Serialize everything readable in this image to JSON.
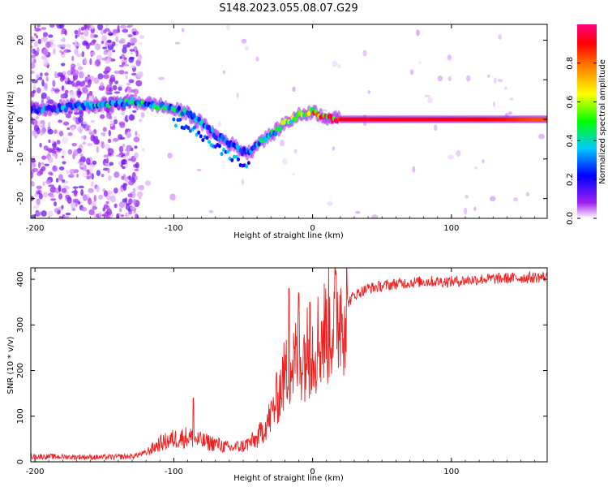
{
  "title": "S148.2023.055.08.07.G29",
  "chart_data": [
    {
      "type": "heatmap",
      "xlabel": "Height of straight line (km)",
      "ylabel": "Frequency (Hz)",
      "xlim": [
        -203,
        169
      ],
      "ylim": [
        -25,
        24
      ],
      "xticks": [
        -200,
        -100,
        0,
        100
      ],
      "yticks": [
        -20,
        -10,
        0,
        10,
        20
      ],
      "colorbar": {
        "label": "Normalized spectral amplitude",
        "range": [
          0,
          1
        ],
        "ticks": [
          0.0,
          0.2,
          0.4,
          0.6,
          0.8
        ],
        "stops": [
          "#ffffff",
          "#a020f0",
          "#0000ff",
          "#00c8ff",
          "#00ff00",
          "#ffff00",
          "#ff8000",
          "#ff0000",
          "#ff0080"
        ]
      },
      "ridge": {
        "height_km": [
          -200,
          -180,
          -160,
          -140,
          -130,
          -120,
          -110,
          -100,
          -90,
          -80,
          -70,
          -60,
          -50,
          -45,
          -40,
          -30,
          -20,
          -10,
          0,
          10,
          20,
          40,
          60,
          80,
          100,
          120,
          140,
          160,
          169
        ],
        "frequency_hz": [
          2.5,
          3,
          3.5,
          4,
          4.5,
          4,
          3.5,
          2.5,
          1.5,
          -1,
          -4,
          -6,
          -8,
          -8.5,
          -6,
          -4,
          -1,
          1,
          2,
          0.5,
          0,
          0,
          0,
          0,
          0,
          0,
          0,
          0,
          0
        ],
        "amplitude": [
          0.3,
          0.35,
          0.35,
          0.4,
          0.4,
          0.45,
          0.45,
          0.4,
          0.35,
          0.35,
          0.3,
          0.3,
          0.3,
          0.3,
          0.35,
          0.4,
          0.5,
          0.6,
          0.7,
          0.85,
          0.9,
          0.9,
          0.9,
          0.9,
          0.9,
          0.88,
          0.85,
          0.8,
          0.8
        ]
      }
    },
    {
      "type": "line",
      "xlabel": "Height of straight line (km)",
      "ylabel": "SNR (10 * v/v)",
      "xlim": [
        -203,
        169
      ],
      "ylim": [
        0,
        425
      ],
      "xticks": [
        -200,
        -100,
        0,
        100
      ],
      "yticks": [
        0,
        100,
        200,
        300,
        400
      ],
      "color": "#ee2020",
      "trend": {
        "height_km": [
          -203,
          -150,
          -130,
          -120,
          -110,
          -100,
          -90,
          -80,
          -70,
          -60,
          -50,
          -40,
          -30,
          -20,
          -10,
          0,
          10,
          20,
          30,
          40,
          60,
          80,
          100,
          120,
          140,
          169
        ],
        "snr": [
          12,
          10,
          12,
          20,
          40,
          50,
          55,
          45,
          40,
          30,
          35,
          50,
          100,
          190,
          230,
          250,
          290,
          330,
          365,
          380,
          390,
          395,
          395,
          400,
          402,
          405
        ]
      },
      "spikes": [
        {
          "height_km": -86,
          "snr": 140
        },
        {
          "height_km": -17,
          "snr": 380
        },
        {
          "height_km": -10,
          "snr": 370
        },
        {
          "height_km": -2,
          "snr": 350
        }
      ]
    }
  ]
}
